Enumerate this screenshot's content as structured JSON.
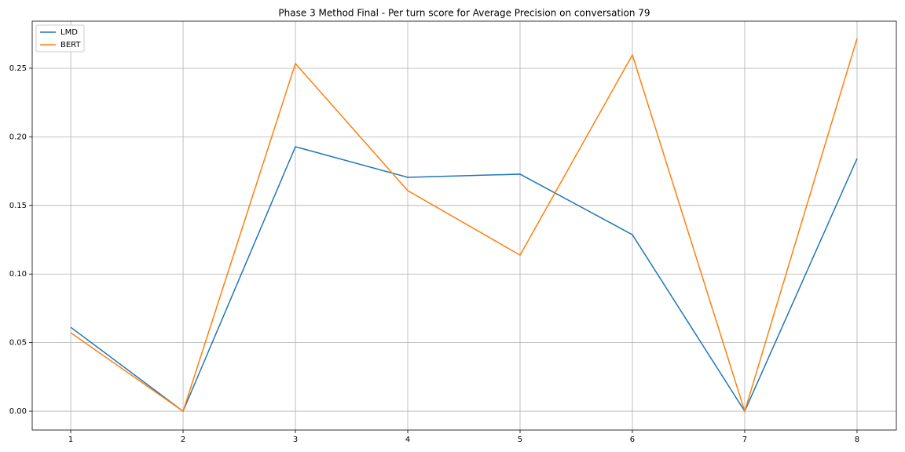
{
  "chart_data": {
    "type": "line",
    "title": "Phase 3 Method Final - Per turn score for Average Precision on conversation 79",
    "x": [
      1,
      2,
      3,
      4,
      5,
      6,
      7,
      8
    ],
    "series": [
      {
        "name": "LMD",
        "color": "#1f77b4",
        "values": [
          0.0612,
          0,
          0.1928,
          0.1705,
          0.1728,
          0.1287,
          0,
          0.1842
        ]
      },
      {
        "name": "BERT",
        "color": "#ff7f0e",
        "values": [
          0.0572,
          0,
          0.2534,
          0.1608,
          0.1138,
          0.2597,
          0,
          0.2717
        ]
      }
    ],
    "xlim": [
      0.657,
      8.35
    ],
    "xticks": [
      1,
      2,
      3,
      4,
      5,
      6,
      7,
      8
    ],
    "ylim": [
      -0.0137,
      0.2843
    ],
    "yticks": [
      {
        "value": 0,
        "label": "0.00"
      },
      0.05,
      {
        "value": 0.1,
        "label": "0.10"
      },
      0.15,
      {
        "value": 0.2,
        "label": "0.20"
      },
      0.25
    ],
    "grid": true,
    "legend": "upper-left"
  }
}
